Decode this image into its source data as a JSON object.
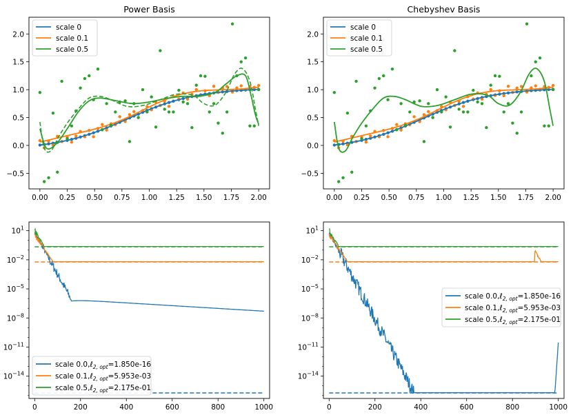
{
  "colors": {
    "c0": "#1f77b4",
    "c1": "#ff7f0e",
    "c2": "#2ca02c"
  },
  "chart_data": [
    {
      "type": "scatter",
      "title": "Power Basis",
      "xlim": [
        -0.1,
        2.1
      ],
      "ylim": [
        -0.78,
        2.3
      ],
      "xticks": [
        "0.00",
        "0.25",
        "0.50",
        "0.75",
        "1.00",
        "1.25",
        "1.50",
        "1.75",
        "2.00"
      ],
      "yticks": [
        "−0.5",
        "0.0",
        "0.5",
        "1.0",
        "1.5",
        "2.0"
      ],
      "legend_position": "top-left",
      "legend": [
        "scale 0",
        "scale 0.1",
        "scale 0.5"
      ],
      "series": [
        {
          "name": "scale 0",
          "kind": "points_and_fit",
          "x_range": [
            0,
            2
          ],
          "n_points": 50
        },
        {
          "name": "scale 0.1",
          "kind": "points_and_fit",
          "x_range": [
            0,
            2
          ],
          "n_points": 50
        },
        {
          "name": "scale 0.5",
          "kind": "points_and_fit",
          "x_range": [
            0,
            2
          ],
          "n_points": 50
        }
      ],
      "curves_scale05_solid": {
        "x": [
          0,
          0.06,
          0.15,
          0.25,
          0.35,
          0.45,
          0.55,
          0.7,
          0.85,
          1.0,
          1.15,
          1.3,
          1.45,
          1.6,
          1.7,
          1.8,
          1.88,
          1.93,
          1.97,
          2.0
        ],
        "y": [
          0.3,
          -0.05,
          0.03,
          0.3,
          0.6,
          0.8,
          0.85,
          0.8,
          0.75,
          0.78,
          0.84,
          0.88,
          0.88,
          0.95,
          1.1,
          1.25,
          1.25,
          0.9,
          0.55,
          0.38
        ]
      },
      "curves_scale05_dashed": {
        "x": [
          0,
          0.04,
          0.1,
          0.17,
          0.25,
          0.35,
          0.45,
          0.55,
          0.65,
          0.8,
          0.95,
          1.1,
          1.25,
          1.4,
          1.5,
          1.6,
          1.7,
          1.78,
          1.85,
          1.92,
          1.97,
          2.0
        ],
        "y": [
          0.42,
          -0.05,
          -0.1,
          0.15,
          0.4,
          0.65,
          0.85,
          0.88,
          0.82,
          0.7,
          0.72,
          0.82,
          0.92,
          0.9,
          0.75,
          0.72,
          0.95,
          1.28,
          1.38,
          1.15,
          0.65,
          0.35
        ]
      },
      "points_scale05": {
        "x": [
          0.0,
          0.04,
          0.08,
          0.12,
          0.16,
          0.2,
          0.25,
          0.29,
          0.33,
          0.37,
          0.41,
          0.45,
          0.49,
          0.53,
          0.57,
          0.61,
          0.65,
          0.69,
          0.73,
          0.78,
          0.82,
          0.86,
          0.9,
          0.94,
          0.98,
          1.02,
          1.06,
          1.1,
          1.14,
          1.18,
          1.22,
          1.27,
          1.31,
          1.35,
          1.39,
          1.43,
          1.47,
          1.51,
          1.55,
          1.59,
          1.63,
          1.67,
          1.71,
          1.76,
          1.8,
          1.84,
          1.88,
          1.92,
          1.96,
          2.0
        ],
        "y": [
          0.95,
          -0.65,
          -0.58,
          0.58,
          -0.48,
          1.15,
          0.12,
          0.35,
          0.62,
          1.03,
          1.2,
          1.25,
          0.82,
          1.37,
          0.28,
          0.75,
          0.36,
          0.6,
          0.78,
          0.8,
          0.07,
          0.75,
          0.5,
          1.0,
          0.6,
          0.87,
          0.33,
          1.7,
          0.65,
          0.6,
          0.6,
          0.99,
          0.78,
          0.75,
          0.32,
          1.08,
          1.25,
          1.24,
          0.6,
          0.75,
          0.4,
          0.22,
          0.6,
          2.18,
          1.25,
          1.5,
          1.57,
          0.35,
          0.35,
          1.0
        ]
      },
      "noise_scale01": [
        0.06,
        -0.08,
        0.03,
        -0.05,
        0.09,
        -0.02,
        0.04,
        -0.07,
        0.02,
        0.08,
        -0.04,
        0.05,
        -0.09,
        0.03,
        0.07,
        -0.06,
        0.02,
        -0.03,
        0.08,
        -0.05,
        0.04,
        0.06,
        -0.08,
        0.01,
        0.05,
        -0.04,
        0.07,
        -0.02,
        0.03,
        -0.09,
        0.06,
        -0.01,
        0.08,
        -0.05,
        0.02,
        0.09,
        -0.03,
        0.04,
        -0.06,
        0.1,
        -0.02,
        0.05,
        0.07,
        -0.04,
        0.03,
        0.06,
        -0.01,
        0.04,
        0.02,
        0.05
      ]
    },
    {
      "type": "scatter",
      "title": "Chebyshev Basis",
      "xlim": [
        -0.1,
        2.1
      ],
      "ylim": [
        -0.78,
        2.3
      ],
      "xticks": [
        "0.00",
        "0.25",
        "0.50",
        "0.75",
        "1.00",
        "1.25",
        "1.50",
        "1.75",
        "2.00"
      ],
      "yticks": [
        "−0.5",
        "0.0",
        "0.5",
        "1.0",
        "1.5",
        "2.0"
      ],
      "legend_position": "top-left",
      "legend": [
        "scale 0",
        "scale 0.1",
        "scale 0.5"
      ],
      "curves_scale05_solid": {
        "x": [
          0,
          0.04,
          0.1,
          0.17,
          0.25,
          0.35,
          0.45,
          0.55,
          0.65,
          0.8,
          0.95,
          1.1,
          1.25,
          1.4,
          1.5,
          1.6,
          1.7,
          1.78,
          1.85,
          1.92,
          1.97,
          2.0
        ],
        "y": [
          0.42,
          -0.05,
          -0.1,
          0.15,
          0.4,
          0.65,
          0.85,
          0.88,
          0.82,
          0.7,
          0.72,
          0.82,
          0.92,
          0.9,
          0.75,
          0.72,
          0.95,
          1.28,
          1.38,
          1.15,
          0.65,
          0.35
        ]
      }
    },
    {
      "type": "line",
      "yscale": "log",
      "xlim": [
        -25,
        1025
      ],
      "xticks": [
        "0",
        "200",
        "400",
        "600",
        "800",
        "1000"
      ],
      "yticks": [
        "10^1",
        "10^-2",
        "10^-5",
        "10^-8",
        "10^-11",
        "10^-14"
      ],
      "ylim_log10": [
        -16.3,
        1.9
      ],
      "legend_position": "bottom-left",
      "series": [
        {
          "name": "scale 0.0",
          "opt": "1.850e-16",
          "optimum": 1.85e-16,
          "decay": "to ~1e-6 by step 160 then to ~1e-7 at 1000"
        },
        {
          "name": "scale 0.1",
          "opt": "5.953e-03",
          "optimum": 0.005953
        },
        {
          "name": "scale 0.5",
          "opt": "2.175e-01",
          "optimum": 0.2175
        }
      ]
    },
    {
      "type": "line",
      "yscale": "log",
      "xlim": [
        -25,
        1025
      ],
      "xticks": [
        "0",
        "200",
        "400",
        "600",
        "800",
        "1000"
      ],
      "yticks": [
        "10^1",
        "10^-2",
        "10^-5",
        "10^-8",
        "10^-11",
        "10^-14"
      ],
      "ylim_log10": [
        -16.3,
        1.9
      ],
      "legend_position": "center-right",
      "series": [
        {
          "name": "scale 0.0",
          "opt": "1.850e-16",
          "optimum": 1.85e-16,
          "decay": "to optimum by step 370, spike to ~1e-11 at 1000"
        },
        {
          "name": "scale 0.1",
          "opt": "5.953e-03",
          "optimum": 0.005953,
          "spike_at": 900
        },
        {
          "name": "scale 0.5",
          "opt": "2.175e-01",
          "optimum": 0.2175
        }
      ]
    }
  ]
}
